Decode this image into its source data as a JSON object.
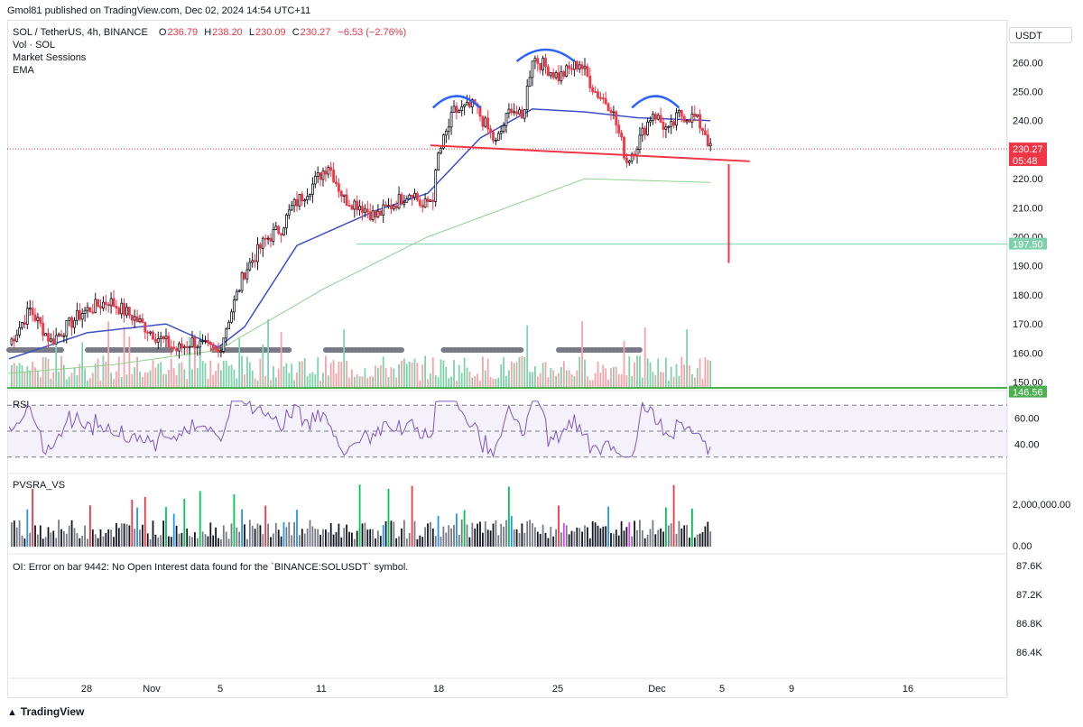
{
  "header": {
    "publisher": "Gmol81 published on TradingView.com, Dec 02, 2024 14:54 UTC+11"
  },
  "legend": {
    "symbol": "SOL / TetherUS, 4h, BINANCE",
    "o_label": "O",
    "o": "236.79",
    "h_label": "H",
    "h": "238.20",
    "l_label": "L",
    "l": "230.09",
    "c_label": "C",
    "c": "230.27",
    "change": "−6.53 (−2.76%)",
    "vol": "Vol · SOL",
    "sessions": "Market Sessions",
    "ema": "EMA"
  },
  "currency_button": "USDT",
  "colors": {
    "up": "#26a69a",
    "down": "#f23645",
    "candle_up": "#131722",
    "ema_fast": "#3d4fc9",
    "ema_slow": "#4caf50",
    "pattern": "#2962ff",
    "neckline": "#f23645",
    "rsi": "#7e57c2",
    "grey_session": "#787b86"
  },
  "chart_data": [
    {
      "type": "candlestick",
      "price_axis": {
        "ticks": [
          "260.00",
          "250.00",
          "240.00",
          "230.00",
          "220.00",
          "210.00",
          "200.00",
          "190.00",
          "180.00",
          "170.00",
          "160.00",
          "150.00"
        ],
        "range": [
          148,
          266
        ]
      },
      "time_axis": {
        "ticks": [
          "28",
          "Nov",
          "5",
          "11",
          "18",
          "25",
          "Dec",
          "5",
          "9",
          "16"
        ]
      },
      "price_labels": [
        {
          "value": 230.27,
          "text": "230.27",
          "sub": "05:48",
          "color": "#f23645"
        },
        {
          "value": 197.5,
          "text": "197.50",
          "color": "#7fd1ad"
        },
        {
          "value": 146.56,
          "text": "146.56",
          "color": "#4caf50"
        }
      ],
      "anchors": [
        [
          0,
          163
        ],
        [
          8,
          175
        ],
        [
          16,
          164
        ],
        [
          28,
          174
        ],
        [
          38,
          178
        ],
        [
          48,
          172
        ],
        [
          56,
          166
        ],
        [
          64,
          161
        ],
        [
          70,
          164
        ],
        [
          80,
          160
        ],
        [
          84,
          172
        ],
        [
          90,
          188
        ],
        [
          98,
          199
        ],
        [
          104,
          203
        ],
        [
          108,
          210
        ],
        [
          116,
          218
        ],
        [
          122,
          225
        ],
        [
          128,
          213
        ],
        [
          134,
          211
        ],
        [
          140,
          207
        ],
        [
          148,
          212
        ],
        [
          154,
          216
        ],
        [
          158,
          210
        ],
        [
          162,
          214
        ],
        [
          164,
          228
        ],
        [
          170,
          243
        ],
        [
          178,
          245
        ],
        [
          186,
          232
        ],
        [
          192,
          245
        ],
        [
          196,
          240
        ],
        [
          200,
          262
        ],
        [
          210,
          255
        ],
        [
          218,
          260
        ],
        [
          224,
          250
        ],
        [
          230,
          245
        ],
        [
          236,
          226
        ],
        [
          240,
          232
        ],
        [
          246,
          243
        ],
        [
          252,
          236
        ],
        [
          256,
          242
        ],
        [
          262,
          241
        ],
        [
          266,
          236
        ],
        [
          268,
          230
        ]
      ],
      "ema_fast": [
        [
          0,
          158
        ],
        [
          30,
          167
        ],
        [
          60,
          170
        ],
        [
          80,
          162
        ],
        [
          90,
          169
        ],
        [
          110,
          197
        ],
        [
          140,
          209
        ],
        [
          160,
          215
        ],
        [
          180,
          234
        ],
        [
          200,
          244
        ],
        [
          220,
          243
        ],
        [
          240,
          241
        ],
        [
          268,
          240
        ]
      ],
      "ema_slow": [
        [
          0,
          153
        ],
        [
          40,
          156
        ],
        [
          80,
          161
        ],
        [
          120,
          182
        ],
        [
          160,
          200
        ],
        [
          190,
          210
        ],
        [
          220,
          220
        ],
        [
          268,
          218.7
        ]
      ],
      "patterns": [
        {
          "label": "left shoulder",
          "x": [
            162,
            180
          ],
          "peak": 250
        },
        {
          "label": "head",
          "x": [
            194,
            216
          ],
          "peak": 266
        },
        {
          "label": "right shoulder",
          "x": [
            238,
            256
          ],
          "peak": 250
        }
      ],
      "neckline": [
        [
          161,
          231.5
        ],
        [
          283,
          226
        ]
      ],
      "target_drop": {
        "x": 275,
        "from": 225,
        "to": 191
      }
    },
    {
      "type": "line",
      "name": "RSI",
      "ticks": [
        "60.00",
        "40.00"
      ],
      "bands": [
        70,
        50,
        30
      ]
    },
    {
      "type": "bar",
      "name": "PVSRA_VS",
      "ticks": [
        "2,000,000.00",
        "0.00"
      ]
    },
    {
      "type": "line",
      "name": "OI",
      "error": "OI: Error on bar 9442: No Open Interest data found for the `BINANCE:SOLUSDT` symbol.",
      "ticks": [
        "87.6K",
        "87.2K",
        "86.8K",
        "86.4K"
      ]
    }
  ],
  "footer": {
    "brand": "TradingView"
  }
}
